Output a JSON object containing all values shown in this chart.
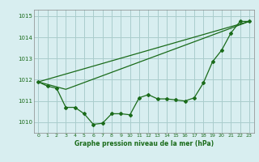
{
  "background_color": "#d8eef0",
  "grid_color": "#aacccc",
  "line_color": "#1a6b1a",
  "title": "Graphe pression niveau de la mer (hPa)",
  "xlim": [
    -0.5,
    23.5
  ],
  "ylim": [
    1009.5,
    1015.3
  ],
  "yticks": [
    1010,
    1011,
    1012,
    1013,
    1014,
    1015
  ],
  "xticks": [
    0,
    1,
    2,
    3,
    4,
    5,
    6,
    7,
    8,
    9,
    10,
    11,
    12,
    13,
    14,
    15,
    16,
    17,
    18,
    19,
    20,
    21,
    22,
    23
  ],
  "series1_x": [
    0,
    1,
    2,
    3,
    4,
    5,
    6,
    7,
    8,
    9,
    10,
    11,
    12,
    13,
    14,
    15,
    16,
    17,
    18,
    19,
    20,
    21,
    22,
    23
  ],
  "series1_y": [
    1011.9,
    1011.7,
    1011.6,
    1010.7,
    1010.7,
    1010.4,
    1009.9,
    1009.95,
    1010.4,
    1010.4,
    1010.35,
    1011.15,
    1011.3,
    1011.1,
    1011.1,
    1011.05,
    1011.0,
    1011.15,
    1011.85,
    1012.85,
    1013.4,
    1014.2,
    1014.75,
    1014.75
  ],
  "series2_x": [
    0,
    3,
    23
  ],
  "series2_y": [
    1011.9,
    1011.55,
    1014.75
  ],
  "series3_x": [
    0,
    23
  ],
  "series3_y": [
    1011.9,
    1014.75
  ]
}
